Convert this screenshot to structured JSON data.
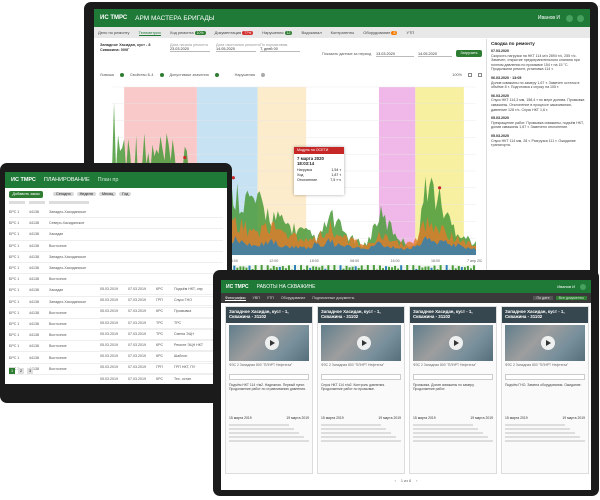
{
  "main": {
    "logo": "ИС ТМРС",
    "title": "АРМ МАСТЕРА БРИГАДЫ",
    "user": "Иванов И",
    "tabs": [
      {
        "label": "Дело по ремонту",
        "badge": ""
      },
      {
        "label": "Телеметрия",
        "badge": ""
      },
      {
        "label": "Ход ремонта",
        "badge": "10%"
      },
      {
        "label": "Документация",
        "badge": "77%"
      },
      {
        "label": "Нарушения",
        "badge": "12"
      },
      {
        "label": "Водоканал",
        "badge": ""
      },
      {
        "label": "Контрагенты",
        "badge": ""
      },
      {
        "label": "Оборудование",
        "badge": "8"
      },
      {
        "label": "УТП",
        "badge": ""
      }
    ],
    "well_label": "Западное Хасидан, куст - 8 Скважина: 000Г",
    "start_label": "Дата начала ремонта",
    "start_value": "23.03.2020",
    "end_label": "Дата окончания ремонта",
    "end_value": "14.05.2020",
    "norm_label": "По нормативам",
    "norm_value": "Т, дней 00",
    "period_label": "Показать данные за период",
    "period_from": "13.03.2020",
    "period_to": "14.05.2020",
    "load_button": "Загрузить",
    "legend": {
      "item1": "Ловиша",
      "item2": "Свойство Б-4",
      "item3": "Допустимые значения",
      "item4": "Нарушения"
    },
    "zoom": "100%",
    "tooltip": {
      "title": "Модуль на ОСЕТИ",
      "date": "7 марта 2020 18:03:14",
      "rows": [
        {
          "k": "Нагрузка",
          "v": "1,54 т"
        },
        {
          "k": "Ход",
          "v": "1,87 т"
        },
        {
          "k": "Отклонение",
          "v": "7,5 т·ч"
        }
      ]
    },
    "x_ticks": [
      "28:00",
      "08:00",
      "16:00",
      "08:00",
      "12:00",
      "18:00",
      "08:00",
      "16:00",
      "18:00",
      "7 апр 2020"
    ],
    "side": {
      "title": "Сводка по ремонту",
      "entries": [
        {
          "date": "07.03.2020",
          "text": "Скорость нагрузки на НКТ 114 м/ч 2894 т/с, 255 т/с. Замечен, открытие предохранительного клапана при полном давлении по промывке 154 т на 15 °С. Продолжили ремонт, установка 114 т."
        },
        {
          "date": "06.03.2020 · 13:05",
          "text": "Долив скважины по замеру 1,67 т. Замечен остаток в объёме 8 т. Подготовка к спуску на 105 т."
        },
        {
          "date": "06.03.2020",
          "text": "Спуск НКТ 114,3 мм, 158,4 т по мере долива. Промывка скважины. Отклонение в процессе закачивания, давление 128 т/с. Спуск НКТ 1,6 т."
        },
        {
          "date": "05.03.2020",
          "text": "Прекращение работ. Промывка скважины, подъём НКТ, долив скважины 1,67 т. Замечено отклонение."
        },
        {
          "date": "05.03.2020",
          "text": "Спуск НКТ 114 мм, 28 т. Разгрузка 111 т. Ожидание транспорта."
        }
      ]
    },
    "chart_data": {
      "type": "area",
      "x": [
        0,
        1,
        2,
        3,
        4,
        5,
        6,
        7,
        8,
        9,
        10,
        11,
        12,
        13,
        14,
        15,
        16,
        17,
        18,
        19,
        20,
        21,
        22,
        23,
        24,
        25,
        26,
        27,
        28,
        29,
        30
      ],
      "series": [
        {
          "values": [
            92,
            80,
            74,
            70,
            72,
            66,
            62,
            58,
            56,
            50,
            46,
            42,
            38,
            30,
            24,
            20,
            16,
            12,
            28,
            18,
            10,
            8,
            30,
            20,
            10,
            6,
            55,
            40,
            22,
            14,
            8
          ]
        },
        {
          "values": [
            20,
            26,
            30,
            28,
            32,
            34,
            28,
            24,
            30,
            22,
            26,
            20,
            18,
            22,
            16,
            14,
            12,
            14,
            20,
            12,
            10,
            8,
            14,
            10,
            8,
            12,
            26,
            20,
            14,
            10,
            6
          ]
        },
        {
          "values": [
            8,
            10,
            12,
            12,
            14,
            16,
            12,
            10,
            12,
            10,
            12,
            8,
            8,
            10,
            8,
            6,
            6,
            8,
            10,
            6,
            6,
            4,
            8,
            6,
            4,
            6,
            12,
            10,
            8,
            6,
            4
          ]
        }
      ],
      "ylim": [
        0,
        100
      ],
      "bands": [
        {
          "from": 1,
          "to": 7,
          "color": "#f9c9c9"
        },
        {
          "from": 7,
          "to": 12,
          "color": "#c7e3f3"
        },
        {
          "from": 12,
          "to": 16,
          "color": "#fdeccb"
        },
        {
          "from": 22,
          "to": 25,
          "color": "#f0b8e8"
        },
        {
          "from": 25,
          "to": 29,
          "color": "#f6f0a0"
        }
      ]
    }
  },
  "left": {
    "logo": "ИС ТМРС",
    "title": "ПЛАНИРОВАНИЕ",
    "title_extra": "План пр",
    "add_button": "Добавить заказ",
    "filters": [
      "Сегодня",
      "Неделя",
      "Месяц",
      "Год"
    ],
    "rows": [
      {
        "num": "БРС 1",
        "code": "44138",
        "place": "Западно-Хасиданское"
      },
      {
        "num": "БРС 1",
        "code": "44138",
        "place": "Северо-Хасиданское"
      },
      {
        "num": "БРС 1",
        "code": "44138",
        "place": "Хасидан"
      },
      {
        "num": "БРС 1",
        "code": "44138",
        "place": "Восточное"
      },
      {
        "num": "БРС 1",
        "code": "44138",
        "place": "Западно-Хасиданское"
      },
      {
        "num": "БРС 1",
        "code": "44138",
        "place": "Западно-Хасиданское"
      },
      {
        "num": "БРС 1",
        "code": "44138",
        "place": "Восточное"
      },
      {
        "num": "БРС 1",
        "code": "44138",
        "place": "Хасидан"
      },
      {
        "num": "БРС 1",
        "code": "44138",
        "place": "Западно-Хасиданское"
      },
      {
        "num": "БРС 1",
        "code": "44138",
        "place": "Восточное"
      },
      {
        "num": "БРС 1",
        "code": "44138",
        "place": "Восточное"
      },
      {
        "num": "БРС 1",
        "code": "44138",
        "place": "Восточное"
      },
      {
        "num": "БРС 1",
        "code": "44138",
        "place": "Восточное"
      },
      {
        "num": "БРС 1",
        "code": "44138",
        "place": "Восточное"
      },
      {
        "num": "БРС 1",
        "code": "44138",
        "place": "Восточное"
      }
    ],
    "overlap_rows": [
      {
        "d1": "05.03.2019",
        "d2": "07.03.2019",
        "t": "КРС",
        "v": "Подъём НКТ, опр"
      },
      {
        "d1": "05.03.2019",
        "d2": "07.03.2019",
        "t": "ГРП",
        "v": "Спуск ГНО"
      },
      {
        "d1": "05.03.2019",
        "d2": "07.03.2019",
        "t": "КРС",
        "v": "Промывка"
      },
      {
        "d1": "05.03.2019",
        "d2": "07.03.2019",
        "t": "ТРС",
        "v": "ТРС"
      },
      {
        "d1": "05.03.2019",
        "d2": "07.03.2019",
        "t": "ТРС",
        "v": "Смена ЭЦН"
      },
      {
        "d1": "05.03.2019",
        "d2": "07.03.2019",
        "t": "КРС",
        "v": "Ремонт ЭЦН НКТ"
      },
      {
        "d1": "05.03.2019",
        "d2": "07.03.2019",
        "t": "КРС",
        "v": "Шаблон"
      },
      {
        "d1": "05.03.2019",
        "d2": "07.03.2019",
        "t": "ГРП",
        "v": "ГРП НКТ, ПУ"
      },
      {
        "d1": "05.03.2019",
        "d2": "07.03.2019",
        "t": "КРС",
        "v": "Тех. остан"
      },
      {
        "d1": "05.03.2019",
        "d2": "07.03.2019",
        "t": "ТРС",
        "v": "Замена"
      }
    ],
    "pagination": [
      "1",
      "2",
      "3"
    ]
  },
  "right": {
    "logo": "ИС ТМРС",
    "title": "РАБОТЫ НА СКВАЖИНЕ",
    "user": "Иванов И",
    "tabs": [
      "Фотографии",
      "УВП",
      "УТП",
      "Оборудование",
      "Подписанные документы"
    ],
    "filter1": "По дате",
    "filter2": "Все документы",
    "cards": [
      {
        "title": "Западное Хасидан, куст - 1, Скважина - 31102",
        "meta": "ФЗС 2 Западная 800 \"ПЛНРТ Нефтегаз\"",
        "note": "Подъём НКТ 114 т/м2. Надежная. Первый пункт. Продолжение работ по стравливанию давления.",
        "d1": "15 марта 2019",
        "d2": "19 марта 2019"
      },
      {
        "title": "Западное Хасидан, куст - 1, Скважина - 31102",
        "meta": "ФЗС 2 Западная 800 \"ПЛНРТ Нефтегаз\"",
        "note": "Спуск НКТ 114 т/м2. Контроль давления. Продолжение работ по промывке.",
        "d1": "15 марта 2019",
        "d2": "19 марта 2019"
      },
      {
        "title": "Западное Хасидан, куст - 1, Скважина - 31102",
        "meta": "ФЗС 2 Западная 800 \"ПЛНРТ Нефтегаз\"",
        "note": "Промывка. Долив скважины по замеру. Продолжение работ.",
        "d1": "15 марта 2019",
        "d2": "19 марта 2019"
      },
      {
        "title": "Западное Хасидан, куст - 1, Скважина - 31102",
        "meta": "ФЗС 2 Западная 800 \"ПЛНРТ Нефтегаз\"",
        "note": "Подъём ГНО. Замена оборудования. Ожидание.",
        "d1": "15 марта 2019",
        "d2": "19 марта 2019"
      }
    ],
    "pages": "1 из 8"
  }
}
